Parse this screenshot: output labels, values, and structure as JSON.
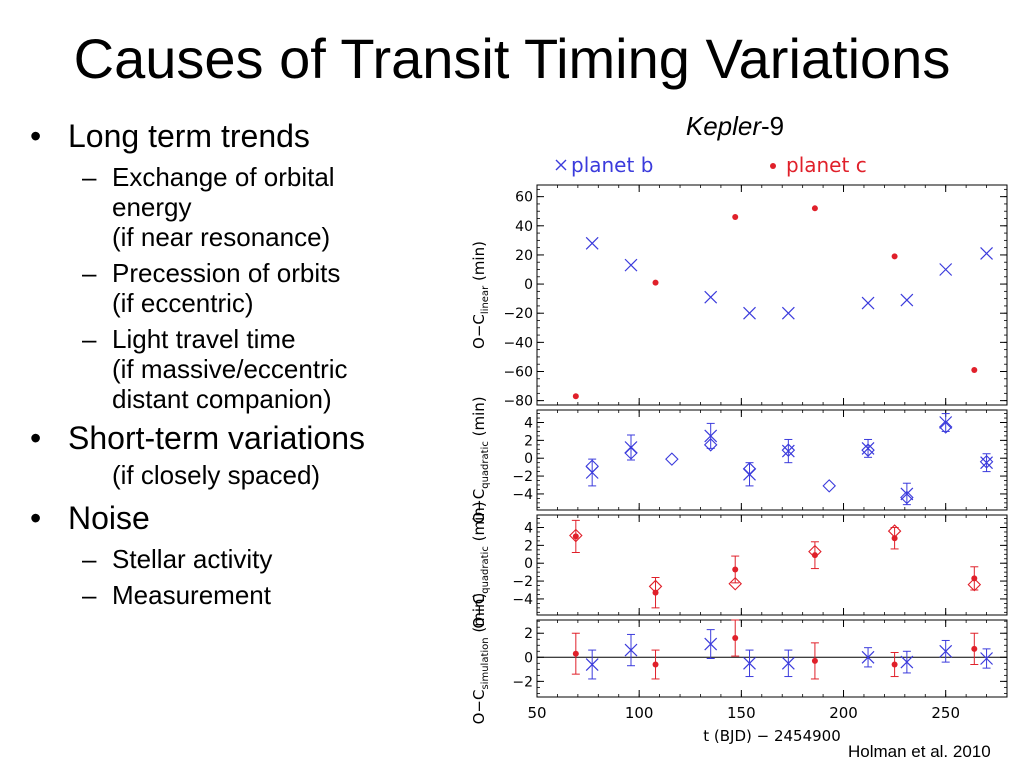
{
  "slide": {
    "title": "Causes of Transit Timing Variations",
    "citation": "Holman et al. 2010"
  },
  "bullets": [
    {
      "text": "Long term trends",
      "sub": [
        {
          "lines": [
            "Exchange of orbital",
            "energy",
            "(if near resonance)"
          ]
        },
        {
          "lines": [
            "Precession of orbits",
            "(if eccentric)"
          ]
        },
        {
          "lines": [
            "Light travel time",
            "(if massive/eccentric",
            "distant companion)"
          ]
        }
      ]
    },
    {
      "text": "Short-term variations",
      "note": "(if closely spaced)"
    },
    {
      "text": "Noise",
      "sub": [
        {
          "lines": [
            "Stellar activity"
          ]
        },
        {
          "lines": [
            "Measurement"
          ]
        }
      ]
    }
  ],
  "chart_data": {
    "type": "scatter",
    "title": "Kepler-9",
    "title_italic": "Kepler",
    "title_rest": "-9",
    "legend": [
      {
        "name": "planet b",
        "symbol": "x",
        "color": "#3b3bdc"
      },
      {
        "name": "planet c",
        "symbol": "dot",
        "color": "#e0202a"
      }
    ],
    "legend_placement": "top",
    "xlabel": "t (BJD) − 2454900",
    "xlim": [
      50,
      280
    ],
    "xticks": [
      50,
      100,
      150,
      200,
      250
    ],
    "colors": {
      "b": "#3b3bdc",
      "c": "#e0202a",
      "model_b": "#3b3bdc",
      "model_c": "#e0202a"
    },
    "panels": [
      {
        "ylabel_main": "O−C",
        "ylabel_sub": "linear",
        "ylabel_unit": "(min)",
        "ylim": [
          -83,
          68
        ],
        "yticks": [
          60,
          40,
          20,
          0,
          -20,
          -40,
          -60,
          -80
        ],
        "series": [
          {
            "name": "planet b",
            "marker": "x",
            "color": "#3b3bdc",
            "x": [
              77,
              96,
              135,
              154,
              173,
              212,
              231,
              250,
              270
            ],
            "y": [
              28,
              13,
              -9,
              -20,
              -20,
              -13,
              -11,
              10,
              21
            ]
          },
          {
            "name": "planet c",
            "marker": "dot",
            "color": "#e0202a",
            "x": [
              69,
              108,
              147,
              186,
              225,
              264
            ],
            "y": [
              -77,
              1,
              46,
              52,
              19,
              -59
            ]
          }
        ]
      },
      {
        "ylabel_main": "O−C",
        "ylabel_sub": "quadratic",
        "ylabel_unit": "(min)",
        "ylim": [
          -5.8,
          5.4
        ],
        "yticks": [
          4,
          2,
          0,
          -2,
          -4
        ],
        "series": [
          {
            "marker": "x",
            "color": "#3b3bdc",
            "x": [
              77,
              96,
              135,
              154,
              173,
              212,
              231,
              250,
              270
            ],
            "y": [
              -1.6,
              1.2,
              2.5,
              -1.8,
              0.8,
              1.1,
              -4.0,
              4.0,
              -0.5
            ],
            "err": [
              1.5,
              1.4,
              1.4,
              1.3,
              1.3,
              1.0,
              1.2,
              1.0,
              1.0
            ]
          },
          {
            "marker": "diamond",
            "color": "#3b3bdc",
            "x": [
              77,
              96,
              116,
              135,
              154,
              173,
              193,
              212,
              231,
              250,
              270
            ],
            "y": [
              -0.9,
              0.6,
              -0.1,
              1.5,
              -1.2,
              0.9,
              -3.1,
              0.9,
              -4.4,
              3.5,
              -0.4
            ]
          }
        ]
      },
      {
        "ylabel_main": "O−C",
        "ylabel_sub": "quadratic",
        "ylabel_unit": "(min)",
        "ylim": [
          -5.8,
          5.4
        ],
        "yticks": [
          4,
          2,
          0,
          -2,
          -4
        ],
        "series": [
          {
            "marker": "dot",
            "color": "#e0202a",
            "x": [
              69,
              108,
              147,
              186,
              225,
              264
            ],
            "y": [
              3.0,
              -3.3,
              -0.7,
              0.9,
              2.8,
              -1.7
            ],
            "err": [
              1.8,
              1.7,
              1.5,
              1.5,
              1.2,
              1.3
            ]
          },
          {
            "marker": "diamond",
            "color": "#e0202a",
            "x": [
              69,
              108,
              147,
              186,
              225,
              264
            ],
            "y": [
              3.1,
              -2.6,
              -2.3,
              1.3,
              3.6,
              -2.4
            ]
          }
        ]
      },
      {
        "ylabel_main": "O−C",
        "ylabel_sub": "simulation",
        "ylabel_unit": "(min)",
        "ylim": [
          -3.3,
          3.1
        ],
        "yticks": [
          2,
          0,
          -2
        ],
        "zero_line": true,
        "series": [
          {
            "marker": "x",
            "color": "#3b3bdc",
            "x": [
              77,
              96,
              135,
              154,
              173,
              212,
              231,
              250,
              270
            ],
            "y": [
              -0.6,
              0.6,
              1.1,
              -0.5,
              -0.5,
              0.0,
              -0.4,
              0.5,
              -0.1
            ],
            "err": [
              1.2,
              1.3,
              1.2,
              1.1,
              1.1,
              0.8,
              0.9,
              0.9,
              0.8
            ]
          },
          {
            "marker": "dot",
            "color": "#e0202a",
            "x": [
              69,
              108,
              147,
              186,
              225,
              264
            ],
            "y": [
              0.3,
              -0.6,
              1.6,
              -0.3,
              -0.6,
              0.7
            ],
            "err": [
              1.7,
              1.2,
              1.5,
              1.5,
              1.0,
              1.3
            ]
          }
        ]
      }
    ]
  }
}
